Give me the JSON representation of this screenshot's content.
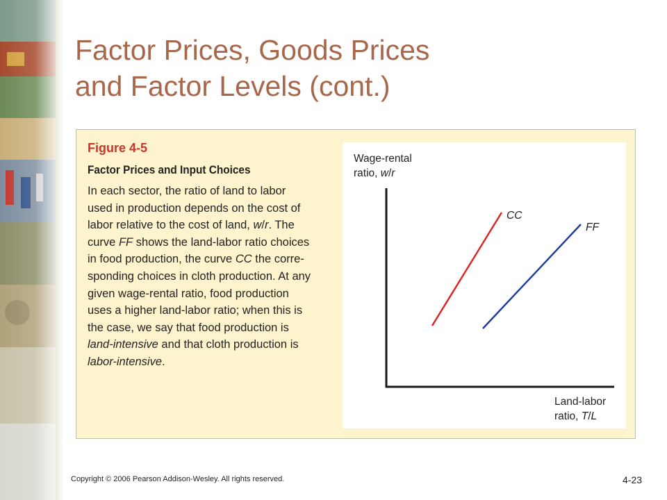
{
  "slide": {
    "title_lines": [
      "Factor Prices, Goods Prices",
      "and Factor Levels (cont.)"
    ],
    "copyright": "Copyright © 2006 Pearson Addison-Wesley. All rights reserved.",
    "page_number": "4-23"
  },
  "figure": {
    "label": "Figure 4-5",
    "heading": "Factor Prices and Input Choices",
    "caption_lines": [
      "In each sector, the ratio of land to labor",
      "used in production depends on the cost of",
      "labor relative to the cost of land, w/r. The",
      "curve FF shows the land-labor ratio choices",
      "in food production, the curve CC the corre-",
      "sponding choices in cloth production. At any",
      "given wage-rental ratio, food production",
      "uses a higher land-labor ratio; when this is",
      "the case, we say that food production is",
      "land-intensive and that cloth production is",
      "labor-intensive."
    ]
  },
  "diagram": {
    "y_axis_label": [
      "Wage-rental",
      "ratio, w/r"
    ],
    "x_axis_label": [
      "Land-labor",
      "ratio, T/L"
    ],
    "curves": [
      {
        "name": "CC",
        "color": "#e02020"
      },
      {
        "name": "FF",
        "color": "#1a3aa0"
      }
    ]
  }
}
